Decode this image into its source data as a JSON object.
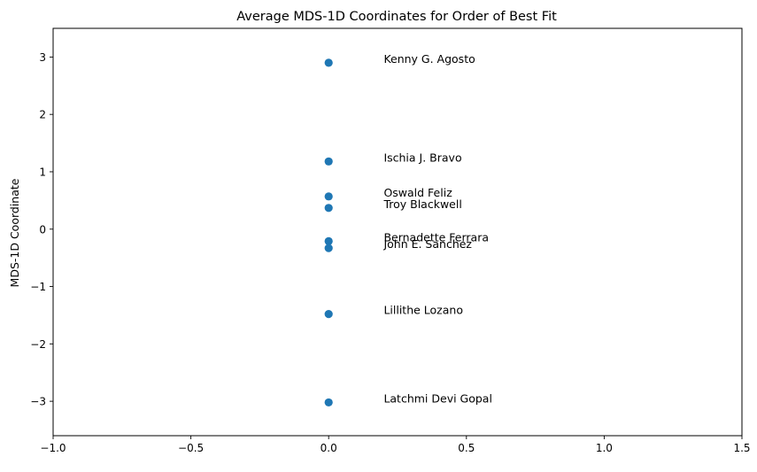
{
  "chart_data": {
    "type": "scatter",
    "title": "Average MDS-1D Coordinates for Order of Best Fit",
    "xlabel": "",
    "ylabel": "MDS-1D Coordinate",
    "xlim": [
      -1.0,
      1.5
    ],
    "ylim": [
      -3.6,
      3.5
    ],
    "xticks": [
      -1.0,
      -0.5,
      0.0,
      0.5,
      1.0,
      1.5
    ],
    "xtick_labels": [
      "−1.0",
      "−0.5",
      "0.0",
      "0.5",
      "1.0",
      "1.5"
    ],
    "yticks": [
      3,
      2,
      1,
      0,
      -1,
      -2,
      -3
    ],
    "ytick_labels": [
      "3",
      "2",
      "1",
      "0",
      "−1",
      "−2",
      "−3"
    ],
    "grid": false,
    "marker_color": "#1f77b4",
    "label_x": 0.2,
    "points": [
      {
        "label": "Kenny G. Agosto",
        "x": 0.0,
        "y": 2.9
      },
      {
        "label": "Ischia J. Bravo",
        "x": 0.0,
        "y": 1.18
      },
      {
        "label": "Oswald Feliz",
        "x": 0.0,
        "y": 0.57
      },
      {
        "label": "Troy Blackwell",
        "x": 0.0,
        "y": 0.37
      },
      {
        "label": "Bernadette Ferrara",
        "x": 0.0,
        "y": -0.21
      },
      {
        "label": "John E. Sanchez",
        "x": 0.0,
        "y": -0.33
      },
      {
        "label": "Lillithe Lozano",
        "x": 0.0,
        "y": -1.48
      },
      {
        "label": "Latchmi Devi Gopal",
        "x": 0.0,
        "y": -3.02
      }
    ]
  }
}
